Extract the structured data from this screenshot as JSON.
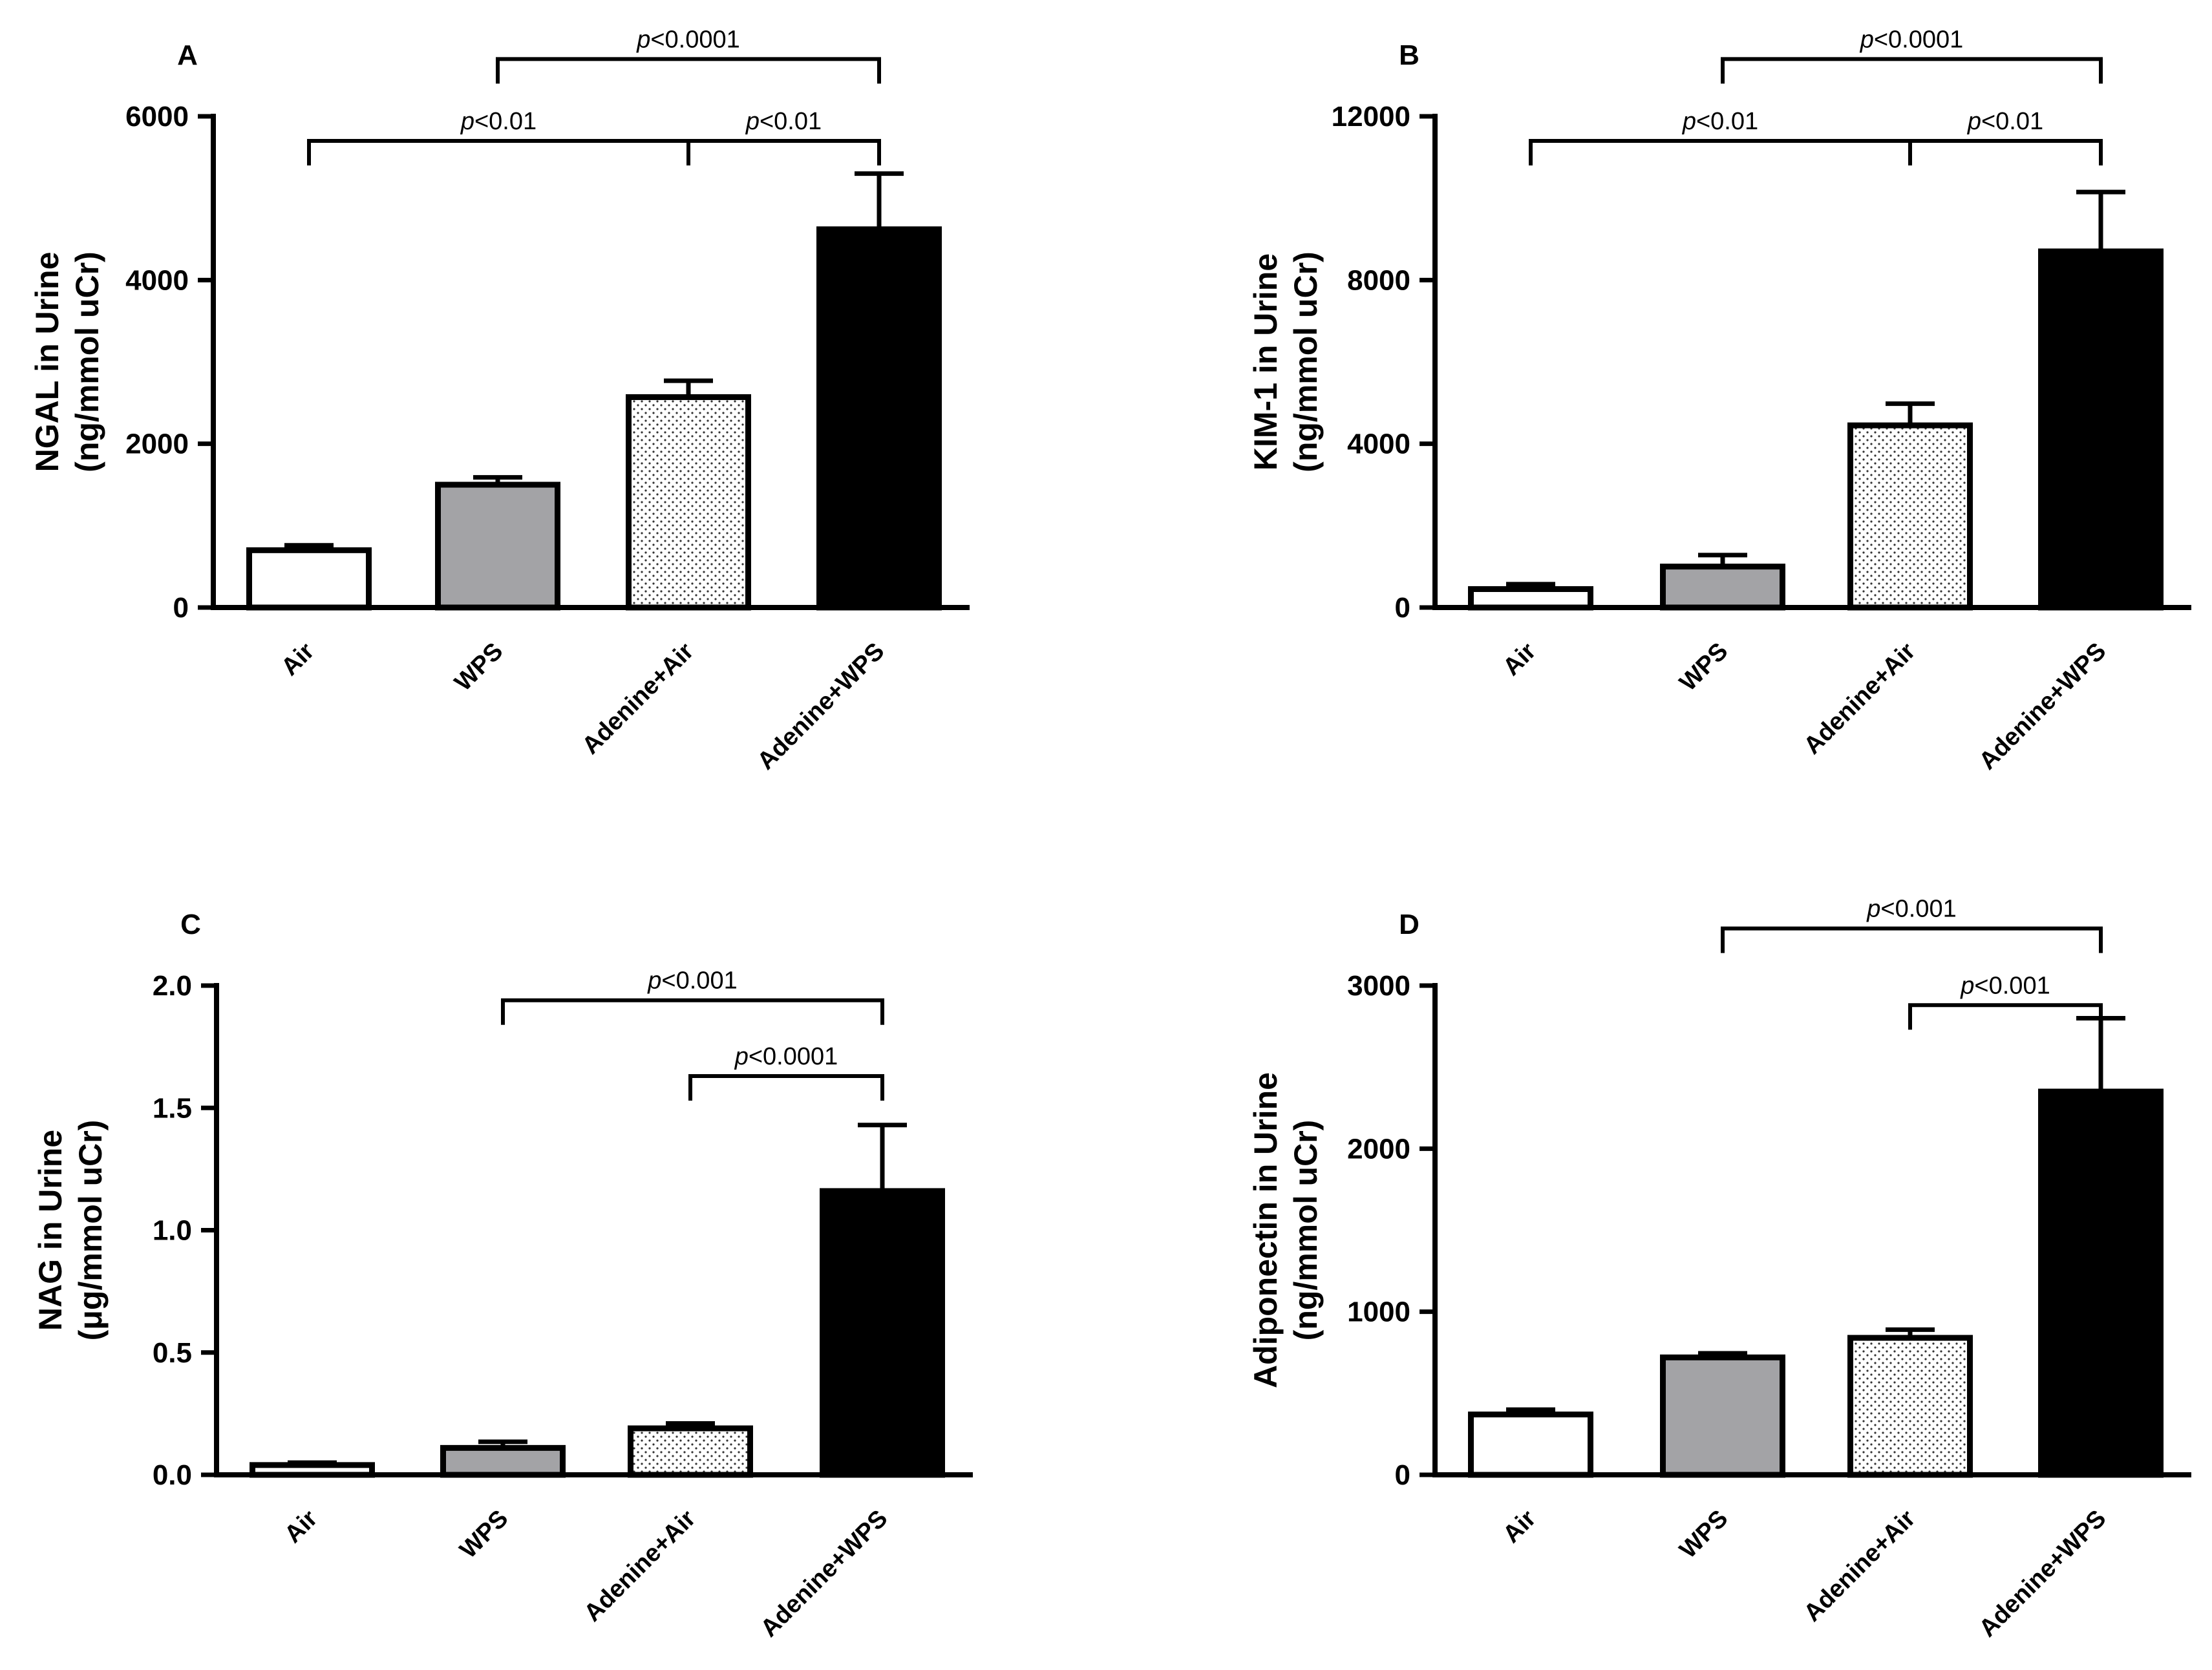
{
  "colors": {
    "axis": "#000000",
    "Air": "#ffffff",
    "WPS": "#a3a3a6",
    "Adenine+Air": "dotted",
    "Adenine+WPS": "#000000"
  },
  "chart_data": [
    {
      "type": "bar",
      "panel": "A",
      "categories": [
        "Air",
        "WPS",
        "Adenine+Air",
        "Adenine+WPS"
      ],
      "values": [
        700,
        1500,
        2570,
        4620
      ],
      "errors": [
        60,
        90,
        200,
        680
      ],
      "ylabel_line1": "NGAL in Urine",
      "ylabel_line2": "(ng/mmol uCr)",
      "ylim": [
        0,
        6000
      ],
      "ticks": [
        0,
        2000,
        4000,
        6000
      ],
      "tick_labels": [
        "0",
        "2000",
        "4000",
        "6000"
      ],
      "significance": [
        {
          "from": 1,
          "to": 3,
          "p": "p",
          "text": "<0.0001",
          "level": 6700
        },
        {
          "from": 0,
          "to": 2,
          "p": "p",
          "text": "<0.01",
          "level": 5700
        },
        {
          "from": 2,
          "to": 3,
          "p": "p",
          "text": "<0.01",
          "level": 5700
        }
      ]
    },
    {
      "type": "bar",
      "panel": "B",
      "categories": [
        "Air",
        "WPS",
        "Adenine+Air",
        "Adenine+WPS"
      ],
      "values": [
        450,
        1000,
        4450,
        8700
      ],
      "errors": [
        120,
        280,
        530,
        1450
      ],
      "ylabel_line1": "KIM-1 in Urine",
      "ylabel_line2": "(ng/mmol uCr)",
      "ylim": [
        0,
        12000
      ],
      "ticks": [
        0,
        4000,
        8000,
        12000
      ],
      "tick_labels": [
        "0",
        "4000",
        "8000",
        "12000"
      ],
      "significance": [
        {
          "from": 1,
          "to": 3,
          "p": "p",
          "text": "<0.0001",
          "level": 13400
        },
        {
          "from": 0,
          "to": 2,
          "p": "p",
          "text": "<0.01",
          "level": 11400
        },
        {
          "from": 2,
          "to": 3,
          "p": "p",
          "text": "<0.01",
          "level": 11400
        }
      ]
    },
    {
      "type": "bar",
      "panel": "C",
      "categories": [
        "Air",
        "WPS",
        "Adenine+Air",
        "Adenine+WPS"
      ],
      "values": [
        0.04,
        0.11,
        0.19,
        1.16
      ],
      "errors": [
        0.01,
        0.025,
        0.02,
        0.27
      ],
      "ylabel_line1": "NAG in Urine",
      "ylabel_line2": "(μg/mmol uCr)",
      "ylim": [
        0,
        2.0
      ],
      "ticks": [
        0,
        0.5,
        1.0,
        1.5,
        2.0
      ],
      "tick_labels": [
        "0.0",
        "0.5",
        "1.0",
        "1.5",
        "2.0"
      ],
      "significance": [
        {
          "from": 1,
          "to": 3,
          "p": "p",
          "text": "<0.001",
          "level": 1.94
        },
        {
          "from": 2,
          "to": 3,
          "p": "p",
          "text": "<0.0001",
          "level": 1.63
        }
      ]
    },
    {
      "type": "bar",
      "panel": "D",
      "categories": [
        "Air",
        "WPS",
        "Adenine+Air",
        "Adenine+WPS"
      ],
      "values": [
        370,
        720,
        840,
        2350
      ],
      "errors": [
        30,
        25,
        50,
        450
      ],
      "ylabel_line1": "Adiponectin in Urine",
      "ylabel_line2": "(ng/mmol uCr)",
      "ylim": [
        0,
        3000
      ],
      "ticks": [
        0,
        1000,
        2000,
        3000
      ],
      "tick_labels": [
        "0",
        "1000",
        "2000",
        "3000"
      ],
      "significance": [
        {
          "from": 1,
          "to": 3,
          "p": "p",
          "text": "<0.001",
          "level": 3350
        },
        {
          "from": 2,
          "to": 3,
          "p": "p",
          "text": "<0.001",
          "level": 2880
        }
      ]
    }
  ]
}
